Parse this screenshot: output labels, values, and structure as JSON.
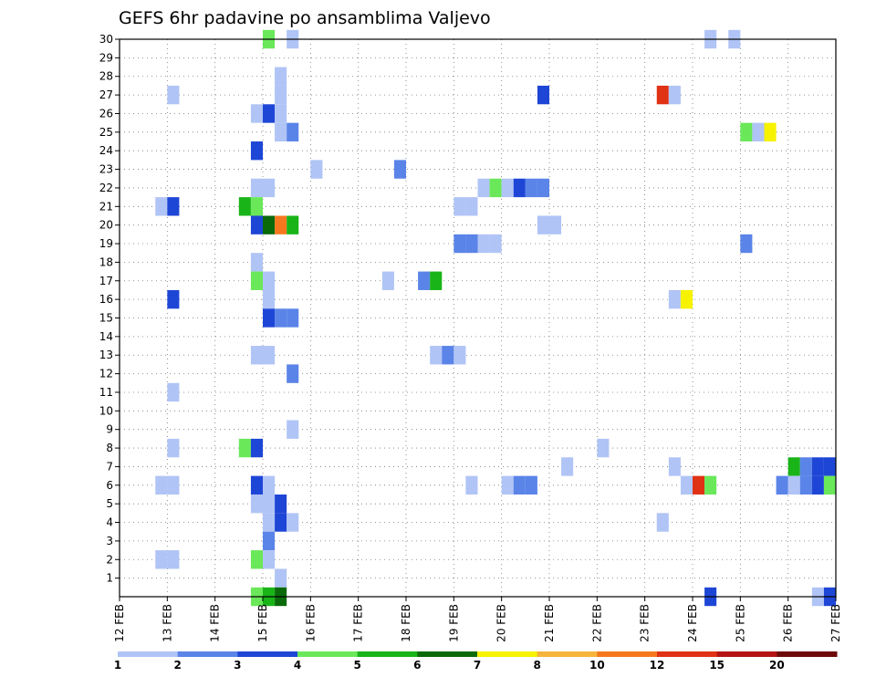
{
  "chart_data": {
    "type": "heatmap",
    "title": "GEFS 6hr padavine po ansamblima Valjevo",
    "x_tick_labels": [
      "12 FEB",
      "13 FEB",
      "14 FEB",
      "15 FEB",
      "16 FEB",
      "17 FEB",
      "18 FEB",
      "19 FEB",
      "20 FEB",
      "21 FEB",
      "22 FEB",
      "23 FEB",
      "24 FEB",
      "25 FEB",
      "26 FEB",
      "27 FEB"
    ],
    "x_range_days": [
      12,
      27
    ],
    "time_step_hours": 6,
    "y_tick_labels": [
      "1",
      "2",
      "3",
      "4",
      "5",
      "6",
      "7",
      "8",
      "9",
      "10",
      "11",
      "12",
      "13",
      "14",
      "15",
      "16",
      "17",
      "18",
      "19",
      "20",
      "21",
      "22",
      "23",
      "24",
      "25",
      "26",
      "27",
      "28",
      "29",
      "30"
    ],
    "y_range": [
      0,
      30
    ],
    "grid": true,
    "colorbar": {
      "labels": [
        "1",
        "2",
        "3",
        "4",
        "5",
        "6",
        "7",
        "8",
        "10",
        "12",
        "15",
        "20"
      ],
      "colors": [
        "#b0c4f6",
        "#5a84e8",
        "#1e46d6",
        "#6ae85a",
        "#18b418",
        "#0a6a0a",
        "#f6f200",
        "#f6b43c",
        "#f6781e",
        "#e03214",
        "#b41414",
        "#6e0a0a"
      ]
    },
    "cells": [
      {
        "member": 30,
        "day": 15.0,
        "bin": 4
      },
      {
        "member": 30,
        "day": 15.5,
        "bin": 1
      },
      {
        "member": 30,
        "day": 24.25,
        "bin": 1
      },
      {
        "member": 30,
        "day": 24.75,
        "bin": 1
      },
      {
        "member": 28,
        "day": 15.25,
        "bin": 1
      },
      {
        "member": 27,
        "day": 13.0,
        "bin": 1
      },
      {
        "member": 27,
        "day": 15.25,
        "bin": 1
      },
      {
        "member": 27,
        "day": 20.75,
        "bin": 3
      },
      {
        "member": 27,
        "day": 23.25,
        "bin": 10
      },
      {
        "member": 27,
        "day": 23.5,
        "bin": 1
      },
      {
        "member": 26,
        "day": 14.75,
        "bin": 1
      },
      {
        "member": 26,
        "day": 15.0,
        "bin": 3
      },
      {
        "member": 26,
        "day": 15.25,
        "bin": 1
      },
      {
        "member": 25,
        "day": 15.25,
        "bin": 1
      },
      {
        "member": 25,
        "day": 15.5,
        "bin": 2
      },
      {
        "member": 25,
        "day": 25.0,
        "bin": 4
      },
      {
        "member": 25,
        "day": 25.25,
        "bin": 1
      },
      {
        "member": 25,
        "day": 25.5,
        "bin": 7
      },
      {
        "member": 24,
        "day": 14.75,
        "bin": 3
      },
      {
        "member": 23,
        "day": 16.0,
        "bin": 1
      },
      {
        "member": 23,
        "day": 17.75,
        "bin": 2
      },
      {
        "member": 22,
        "day": 14.75,
        "bin": 1
      },
      {
        "member": 22,
        "day": 15.0,
        "bin": 1
      },
      {
        "member": 22,
        "day": 19.5,
        "bin": 1
      },
      {
        "member": 22,
        "day": 19.75,
        "bin": 4
      },
      {
        "member": 22,
        "day": 20.0,
        "bin": 1
      },
      {
        "member": 22,
        "day": 20.25,
        "bin": 3
      },
      {
        "member": 22,
        "day": 20.5,
        "bin": 2
      },
      {
        "member": 22,
        "day": 20.75,
        "bin": 2
      },
      {
        "member": 21,
        "day": 12.75,
        "bin": 1
      },
      {
        "member": 21,
        "day": 13.0,
        "bin": 3
      },
      {
        "member": 21,
        "day": 14.5,
        "bin": 5
      },
      {
        "member": 21,
        "day": 14.75,
        "bin": 4
      },
      {
        "member": 21,
        "day": 19.0,
        "bin": 1
      },
      {
        "member": 21,
        "day": 19.25,
        "bin": 1
      },
      {
        "member": 20,
        "day": 14.75,
        "bin": 3
      },
      {
        "member": 20,
        "day": 15.0,
        "bin": 6
      },
      {
        "member": 20,
        "day": 15.25,
        "bin": 9
      },
      {
        "member": 20,
        "day": 15.5,
        "bin": 5
      },
      {
        "member": 20,
        "day": 20.75,
        "bin": 1
      },
      {
        "member": 20,
        "day": 21.0,
        "bin": 1
      },
      {
        "member": 19,
        "day": 19.0,
        "bin": 2
      },
      {
        "member": 19,
        "day": 19.25,
        "bin": 2
      },
      {
        "member": 19,
        "day": 19.5,
        "bin": 1
      },
      {
        "member": 19,
        "day": 19.75,
        "bin": 1
      },
      {
        "member": 19,
        "day": 25.0,
        "bin": 2
      },
      {
        "member": 18,
        "day": 14.75,
        "bin": 1
      },
      {
        "member": 17,
        "day": 14.75,
        "bin": 4
      },
      {
        "member": 17,
        "day": 15.0,
        "bin": 1
      },
      {
        "member": 17,
        "day": 17.5,
        "bin": 1
      },
      {
        "member": 17,
        "day": 18.25,
        "bin": 2
      },
      {
        "member": 17,
        "day": 18.5,
        "bin": 5
      },
      {
        "member": 16,
        "day": 13.0,
        "bin": 3
      },
      {
        "member": 16,
        "day": 15.0,
        "bin": 1
      },
      {
        "member": 16,
        "day": 23.5,
        "bin": 1
      },
      {
        "member": 16,
        "day": 23.75,
        "bin": 7
      },
      {
        "member": 15,
        "day": 15.0,
        "bin": 3
      },
      {
        "member": 15,
        "day": 15.25,
        "bin": 2
      },
      {
        "member": 15,
        "day": 15.5,
        "bin": 2
      },
      {
        "member": 13,
        "day": 14.75,
        "bin": 1
      },
      {
        "member": 13,
        "day": 15.0,
        "bin": 1
      },
      {
        "member": 13,
        "day": 18.5,
        "bin": 1
      },
      {
        "member": 13,
        "day": 18.75,
        "bin": 2
      },
      {
        "member": 13,
        "day": 19.0,
        "bin": 1
      },
      {
        "member": 12,
        "day": 15.5,
        "bin": 2
      },
      {
        "member": 11,
        "day": 13.0,
        "bin": 1
      },
      {
        "member": 9,
        "day": 15.5,
        "bin": 1
      },
      {
        "member": 8,
        "day": 13.0,
        "bin": 1
      },
      {
        "member": 8,
        "day": 14.5,
        "bin": 4
      },
      {
        "member": 8,
        "day": 14.75,
        "bin": 3
      },
      {
        "member": 8,
        "day": 22.0,
        "bin": 1
      },
      {
        "member": 7,
        "day": 21.25,
        "bin": 1
      },
      {
        "member": 7,
        "day": 23.5,
        "bin": 1
      },
      {
        "member": 7,
        "day": 26.0,
        "bin": 5
      },
      {
        "member": 7,
        "day": 26.25,
        "bin": 2
      },
      {
        "member": 7,
        "day": 26.5,
        "bin": 3
      },
      {
        "member": 7,
        "day": 26.75,
        "bin": 3
      },
      {
        "member": 6,
        "day": 12.75,
        "bin": 1
      },
      {
        "member": 6,
        "day": 13.0,
        "bin": 1
      },
      {
        "member": 6,
        "day": 14.75,
        "bin": 3
      },
      {
        "member": 6,
        "day": 15.0,
        "bin": 1
      },
      {
        "member": 6,
        "day": 19.25,
        "bin": 1
      },
      {
        "member": 6,
        "day": 20.0,
        "bin": 1
      },
      {
        "member": 6,
        "day": 20.25,
        "bin": 2
      },
      {
        "member": 6,
        "day": 20.5,
        "bin": 2
      },
      {
        "member": 6,
        "day": 23.75,
        "bin": 1
      },
      {
        "member": 6,
        "day": 24.0,
        "bin": 10
      },
      {
        "member": 6,
        "day": 24.25,
        "bin": 4
      },
      {
        "member": 6,
        "day": 25.75,
        "bin": 2
      },
      {
        "member": 6,
        "day": 26.0,
        "bin": 1
      },
      {
        "member": 6,
        "day": 26.25,
        "bin": 2
      },
      {
        "member": 6,
        "day": 26.5,
        "bin": 3
      },
      {
        "member": 6,
        "day": 26.75,
        "bin": 4
      },
      {
        "member": 5,
        "day": 14.75,
        "bin": 1
      },
      {
        "member": 5,
        "day": 15.0,
        "bin": 1
      },
      {
        "member": 5,
        "day": 15.25,
        "bin": 3
      },
      {
        "member": 4,
        "day": 15.0,
        "bin": 1
      },
      {
        "member": 4,
        "day": 15.25,
        "bin": 3
      },
      {
        "member": 4,
        "day": 15.5,
        "bin": 1
      },
      {
        "member": 4,
        "day": 23.25,
        "bin": 1
      },
      {
        "member": 3,
        "day": 15.0,
        "bin": 2
      },
      {
        "member": 2,
        "day": 12.75,
        "bin": 1
      },
      {
        "member": 2,
        "day": 13.0,
        "bin": 1
      },
      {
        "member": 2,
        "day": 14.75,
        "bin": 4
      },
      {
        "member": 2,
        "day": 15.0,
        "bin": 1
      },
      {
        "member": 1,
        "day": 15.25,
        "bin": 1
      },
      {
        "member": 0,
        "day": 14.75,
        "bin": 4
      },
      {
        "member": 0,
        "day": 15.0,
        "bin": 5
      },
      {
        "member": 0,
        "day": 15.25,
        "bin": 6
      },
      {
        "member": 0,
        "day": 24.25,
        "bin": 3
      },
      {
        "member": 0,
        "day": 26.5,
        "bin": 1
      },
      {
        "member": 0,
        "day": 26.75,
        "bin": 3
      }
    ]
  }
}
